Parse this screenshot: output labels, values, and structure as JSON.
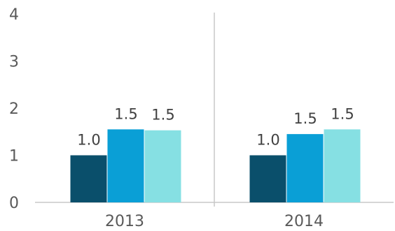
{
  "chart_data": {
    "type": "bar",
    "title": "",
    "xlabel": "",
    "ylabel": "",
    "ylim": [
      0,
      4
    ],
    "yticks": [
      "0",
      "1",
      "2",
      "3",
      "4"
    ],
    "categories": [
      "2013",
      "2014"
    ],
    "series": [
      {
        "values": [
          1.0,
          1.0
        ],
        "labels": [
          "1.0",
          "1.0"
        ],
        "color": "#0a4f6b"
      },
      {
        "values": [
          1.55,
          1.45
        ],
        "labels": [
          "1.5",
          "1.5"
        ],
        "color": "#0a9fd6"
      },
      {
        "values": [
          1.53,
          1.55
        ],
        "labels": [
          "1.5",
          "1.5"
        ],
        "color": "#86e0e3"
      }
    ],
    "grid": false,
    "legend": "none",
    "axis_color": "#c8c8c8"
  }
}
